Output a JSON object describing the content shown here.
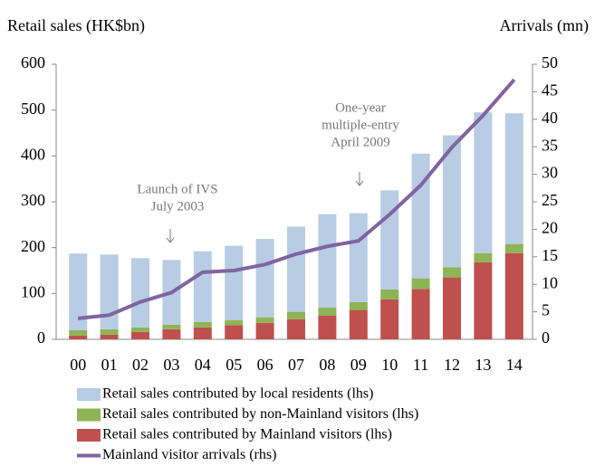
{
  "chart_data": {
    "type": "bar",
    "stacked": true,
    "ylabel": "Retail sales (HK$bn)",
    "y2label": "Arrivals (mn)",
    "categories": [
      "00",
      "01",
      "02",
      "03",
      "04",
      "05",
      "06",
      "07",
      "08",
      "09",
      "10",
      "11",
      "12",
      "13",
      "14"
    ],
    "series": [
      {
        "name": "Retail sales contributed by local residents (lhs)",
        "color": "#b8cce4",
        "values": [
          167,
          163,
          151,
          141,
          154,
          162,
          171,
          186,
          204,
          194,
          216,
          272,
          288,
          307,
          285
        ]
      },
      {
        "name": "Retail sales contributed by non-Mainland visitors (lhs)",
        "color": "#8db455",
        "values": [
          12,
          12,
          10,
          10,
          12,
          11,
          12,
          16,
          17,
          17,
          22,
          23,
          22,
          20,
          20
        ]
      },
      {
        "name": "Retail sales contributed by Mainland visitors (lhs)",
        "color": "#c0504d",
        "values": [
          8,
          10,
          16,
          22,
          26,
          31,
          36,
          44,
          52,
          64,
          87,
          110,
          135,
          168,
          188
        ]
      },
      {
        "name": "Mainland visitor arrivals (rhs)",
        "color": "#8064a2",
        "type": "line",
        "axis": "y2",
        "values": [
          3.8,
          4.4,
          6.8,
          8.5,
          12.2,
          12.5,
          13.6,
          15.5,
          16.9,
          17.9,
          22.7,
          28.0,
          34.9,
          40.7,
          47.2
        ]
      }
    ],
    "ylim": [
      0,
      600
    ],
    "yticks": [
      0,
      100,
      200,
      300,
      400,
      500,
      600
    ],
    "y2lim": [
      0,
      50
    ],
    "y2ticks": [
      0,
      5,
      10,
      15,
      20,
      25,
      30,
      35,
      40,
      45,
      50
    ],
    "annotations": [
      {
        "lines": [
          "Launch of IVS",
          "July 2003"
        ],
        "category": "03"
      },
      {
        "lines": [
          "One-year",
          "multiple-entry",
          "April 2009"
        ],
        "category": "09"
      }
    ],
    "legend": "bottom"
  }
}
